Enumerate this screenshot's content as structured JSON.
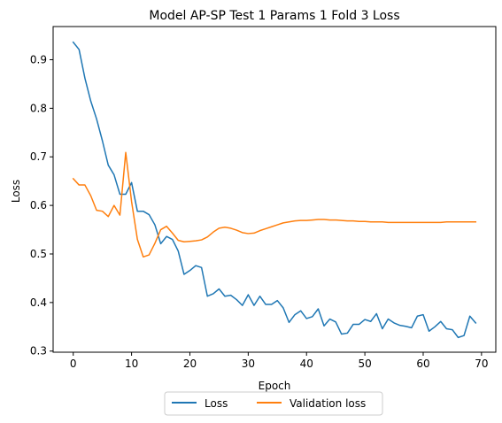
{
  "chart_data": {
    "type": "line",
    "title": "Model AP-SP Test 1 Params 1 Fold 3 Loss",
    "xlabel": "Epoch",
    "ylabel": "Loss",
    "xlim": [
      -3.45,
      72.45
    ],
    "ylim": [
      0.2977,
      0.9683
    ],
    "xticks": [
      0,
      10,
      20,
      30,
      40,
      50,
      60,
      70
    ],
    "yticks": [
      0.3,
      0.4,
      0.5,
      0.6,
      0.7,
      0.8,
      0.9
    ],
    "ytick_labels": [
      "0.3",
      "0.4",
      "0.5",
      "0.6",
      "0.7",
      "0.8",
      "0.9"
    ],
    "legend_position": "lower-center-outside",
    "grid": false,
    "series": [
      {
        "name": "Loss",
        "color": "#1f77b4",
        "x": [
          0,
          1,
          2,
          3,
          4,
          5,
          6,
          7,
          8,
          9,
          10,
          11,
          12,
          13,
          14,
          15,
          16,
          17,
          18,
          19,
          20,
          21,
          22,
          23,
          24,
          25,
          26,
          27,
          28,
          29,
          30,
          31,
          32,
          33,
          34,
          35,
          36,
          37,
          38,
          39,
          40,
          41,
          42,
          43,
          44,
          45,
          46,
          47,
          48,
          49,
          50,
          51,
          52,
          53,
          54,
          55,
          56,
          57,
          58,
          59,
          60,
          61,
          62,
          63,
          64,
          65,
          66,
          67,
          68,
          69
        ],
        "values": [
          0.936,
          0.921,
          0.862,
          0.815,
          0.778,
          0.733,
          0.683,
          0.663,
          0.623,
          0.623,
          0.647,
          0.588,
          0.588,
          0.581,
          0.56,
          0.521,
          0.536,
          0.53,
          0.506,
          0.458,
          0.466,
          0.476,
          0.472,
          0.413,
          0.418,
          0.428,
          0.413,
          0.415,
          0.406,
          0.394,
          0.416,
          0.394,
          0.413,
          0.396,
          0.396,
          0.404,
          0.389,
          0.359,
          0.375,
          0.383,
          0.367,
          0.371,
          0.387,
          0.352,
          0.366,
          0.36,
          0.335,
          0.337,
          0.355,
          0.355,
          0.365,
          0.361,
          0.377,
          0.346,
          0.366,
          0.358,
          0.353,
          0.351,
          0.348,
          0.372,
          0.375,
          0.341,
          0.35,
          0.361,
          0.346,
          0.344,
          0.328,
          0.332,
          0.372,
          0.358
        ]
      },
      {
        "name": "Validation loss",
        "color": "#ff7f0e",
        "x": [
          0,
          1,
          2,
          3,
          4,
          5,
          6,
          7,
          8,
          9,
          10,
          11,
          12,
          13,
          14,
          15,
          16,
          17,
          18,
          19,
          20,
          21,
          22,
          23,
          24,
          25,
          26,
          27,
          28,
          29,
          30,
          31,
          32,
          33,
          34,
          35,
          36,
          37,
          38,
          39,
          40,
          41,
          42,
          43,
          44,
          45,
          46,
          47,
          48,
          49,
          50,
          51,
          52,
          53,
          54,
          55,
          56,
          57,
          58,
          59,
          60,
          61,
          62,
          63,
          64,
          65,
          66,
          67,
          68,
          69
        ],
        "values": [
          0.655,
          0.642,
          0.642,
          0.62,
          0.59,
          0.588,
          0.577,
          0.6,
          0.58,
          0.709,
          0.608,
          0.53,
          0.494,
          0.498,
          0.522,
          0.55,
          0.557,
          0.543,
          0.528,
          0.525,
          0.526,
          0.527,
          0.529,
          0.535,
          0.545,
          0.553,
          0.555,
          0.553,
          0.549,
          0.544,
          0.542,
          0.543,
          0.548,
          0.552,
          0.556,
          0.56,
          0.564,
          0.566,
          0.568,
          0.569,
          0.569,
          0.57,
          0.571,
          0.571,
          0.57,
          0.57,
          0.569,
          0.568,
          0.568,
          0.567,
          0.567,
          0.566,
          0.566,
          0.566,
          0.565,
          0.565,
          0.565,
          0.565,
          0.565,
          0.565,
          0.565,
          0.565,
          0.565,
          0.565,
          0.566,
          0.566,
          0.566,
          0.566,
          0.566,
          0.566
        ]
      }
    ]
  }
}
